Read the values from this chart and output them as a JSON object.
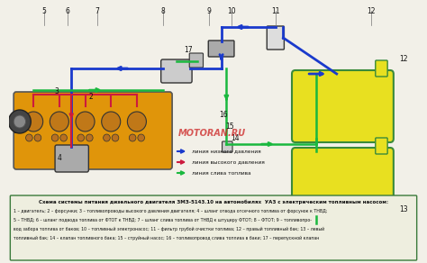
{
  "title": "Схема системы питания дизельного двигателя ЗМЗ-5143.10 на автомобилях  УАЗ с электрическим топливным насосом:",
  "caption_lines": [
    "1 – двигатель; 2 – форсунки; 3 – топливопроводы высокого давления двигателя; 4 – шланг отвода отсечного топлива от форсунок к ТНВД;",
    "5 – ТНВД; 6 – шланг подвода топлива от ФТОТ к ТНВД; 7 – шланг слива топлива от ТНВД к штуцеру ФТОТ; 8 – ФТОТ; 9 – топливопро-",
    "вод забора топлива от баков; 10 – топливный электронасос; 11 – фильтр грубой очистки топлива; 12 – правый топливный бак; 13 – левый",
    "топливный бак; 14 – клапан топливного бака; 15 – струйный насос; 16 – топливопровод слива топлива в баки; 17 – перепускной клапан"
  ],
  "legend": [
    {
      "label": "линия низкого давления",
      "color": "#1a3acc"
    },
    {
      "label": "линия высокого давления",
      "color": "#cc1a3e"
    },
    {
      "label": "линия слива топлива",
      "color": "#1ab83e"
    }
  ],
  "bg_color": "#f2f0e8",
  "engine_color": "#e0950a",
  "engine_edge": "#555555",
  "cyl_color": "#c07818",
  "cyl_edge": "#333333",
  "valve_color": "#b87020",
  "pump_color": "#aaaaaa",
  "ftot_color": "#cccccc",
  "filter_color": "#dddddd",
  "tank_color": "#e8e020",
  "tank_border": "#3a8a3a",
  "cap_border": "#3a7a3a",
  "cap_bg": "#eeeedf",
  "watermark": "MOTORAN.RU",
  "wm_color": "#cc2222",
  "line_low": "#1a3acc",
  "line_high": "#cc1a3e",
  "line_drain": "#1ab83e",
  "num_color": "#111111",
  "ldr_color": "#777777"
}
